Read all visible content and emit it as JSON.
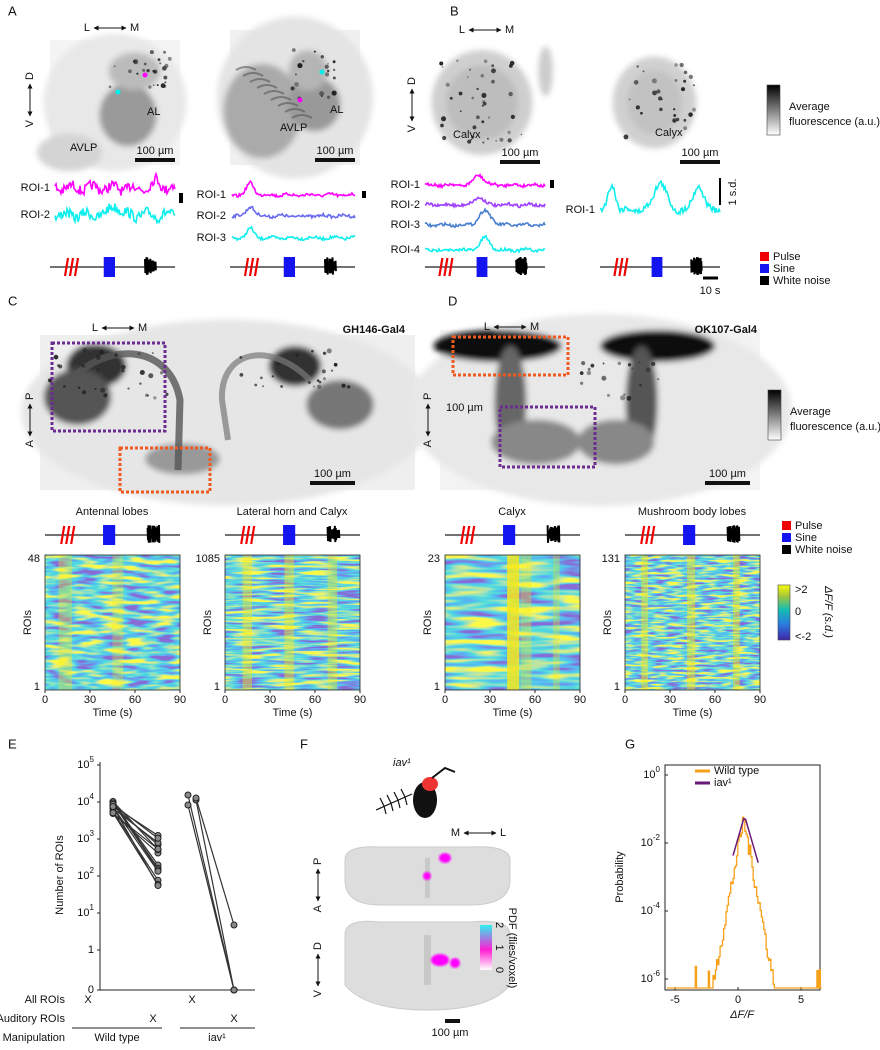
{
  "A": {
    "label": "A",
    "lm": [
      "L",
      "M"
    ],
    "vd": [
      "V",
      "D"
    ],
    "img1": {
      "labels": [
        "AL",
        "AVLP"
      ],
      "scale": "100 µm"
    },
    "img2": {
      "labels": [
        "AL",
        "AVLP"
      ],
      "scale": "100 µm"
    },
    "traces1": [
      "ROI-1",
      "ROI-2"
    ],
    "traces2": [
      "ROI-1",
      "ROI-2",
      "ROI-3"
    ]
  },
  "B": {
    "label": "B",
    "lm": [
      "L",
      "M"
    ],
    "vd": [
      "V",
      "D"
    ],
    "img1": {
      "labels": [
        "Calyx"
      ],
      "scale": "100 µm"
    },
    "img2": {
      "labels": [
        "Calyx"
      ],
      "scale": "100 µm"
    },
    "traces1": [
      "ROI-1",
      "ROI-2",
      "ROI-3",
      "ROI-4"
    ],
    "traces2": [
      "ROI-1"
    ],
    "sd_scale": "1 s.d.",
    "time_scale": "10 s",
    "colorbar": [
      "Average",
      "fluorescence (a.u.)"
    ],
    "legend": [
      "Pulse",
      "Sine",
      "White noise"
    ]
  },
  "C": {
    "label": "C",
    "lm": [
      "L",
      "M"
    ],
    "ap": [
      "A",
      "P"
    ],
    "driver": "GH146-Gal4",
    "scale": "100 µm",
    "heatmaps": [
      {
        "title": "Antennal lobes",
        "ymax": 48,
        "ymin": 1
      },
      {
        "title": "Lateral horn and Calyx",
        "ymax": 1085,
        "ymin": 1
      }
    ],
    "ylabel": "ROIs",
    "xlabel": "Time (s)",
    "xticks": [
      0,
      30,
      60,
      90
    ]
  },
  "D": {
    "label": "D",
    "lm": [
      "L",
      "M"
    ],
    "ap": [
      "A",
      "P"
    ],
    "driver": "OK107-Gal4",
    "scale_inner": "100 µm",
    "scale": "100 µm",
    "colorbar": [
      "Average",
      "fluorescence (a.u.)"
    ],
    "heatmaps": [
      {
        "title": "Calyx",
        "ymax": 23,
        "ymin": 1
      },
      {
        "title": "Mushroom body lobes",
        "ymax": 131,
        "ymin": 1
      }
    ],
    "ylabel": "ROIs",
    "xlabel": "Time (s)",
    "xticks": [
      0,
      30,
      60,
      90
    ],
    "legend": [
      "Pulse",
      "Sine",
      "White noise"
    ],
    "cbar_label": "ΔF/F (s.d.)",
    "cbar_ticks": [
      ">2",
      "0",
      "<-2"
    ]
  },
  "E": {
    "label": "E",
    "ylabel": "Number of ROIs",
    "yticks": [
      {
        "base": "10",
        "exp": "5"
      },
      {
        "base": "10",
        "exp": "4"
      },
      {
        "base": "10",
        "exp": "3"
      },
      {
        "base": "10",
        "exp": "2"
      },
      {
        "base": "10",
        "exp": "1"
      },
      1,
      0
    ],
    "rows": [
      "All ROIs",
      "Auditory ROIs",
      "Manipulation"
    ],
    "marks": [
      "X",
      "X",
      "X",
      "X"
    ],
    "groups": [
      "Wild type",
      "iav¹"
    ]
  },
  "F": {
    "label": "F",
    "fly": "iav¹",
    "ml": [
      "M",
      "L"
    ],
    "ap": [
      "A",
      "P"
    ],
    "vd": [
      "V",
      "D"
    ],
    "cbar_label": "PDF (flies/voxel)",
    "cbar_ticks": [
      0,
      1,
      2
    ],
    "scale": "100 µm"
  },
  "G": {
    "label": "G",
    "ylabel": "Probability",
    "xlabel": "ΔF/F",
    "xticks": [
      -5,
      0,
      5
    ],
    "yticks": [
      {
        "base": "10",
        "exp": "0"
      },
      {
        "base": "10",
        "exp": "-2"
      },
      {
        "base": "10",
        "exp": "-4"
      },
      {
        "base": "10",
        "exp": "-6"
      }
    ],
    "legend": [
      "Wild type",
      "iav¹"
    ]
  }
}
